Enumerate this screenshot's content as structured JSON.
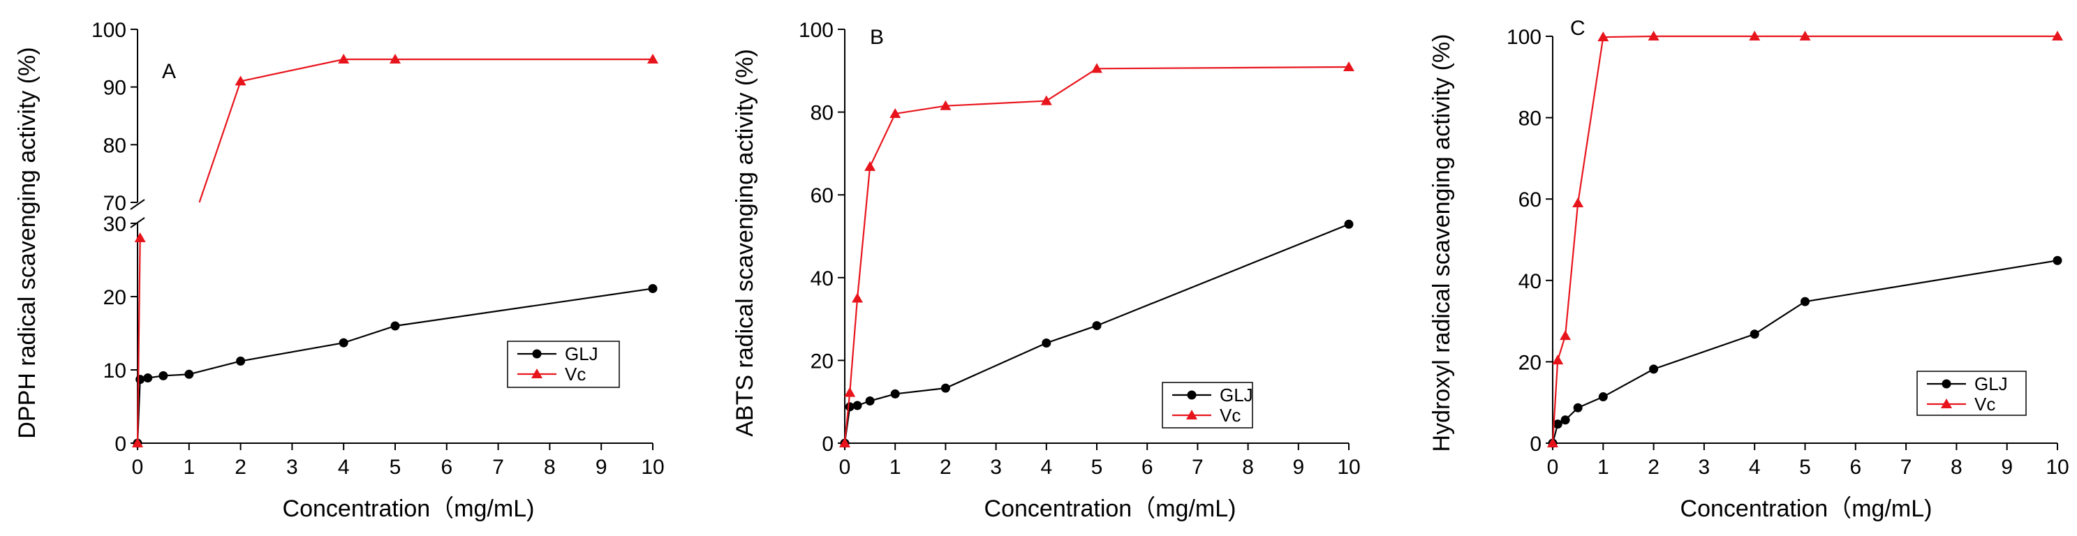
{
  "colors": {
    "glj": "#000000",
    "vc": "#e8141c",
    "axis": "#000000"
  },
  "chart_data": [
    {
      "type": "line",
      "panel_label": "A",
      "xlabel": "Concentration（mg/mL)",
      "ylabel": "DPPH radical scavenging activity (%)",
      "xlim": [
        0,
        10
      ],
      "xticks": [
        0,
        1,
        2,
        3,
        4,
        5,
        6,
        7,
        8,
        9,
        10
      ],
      "y_break": true,
      "ylim_lower": [
        0,
        30
      ],
      "yticks_lower": [
        0,
        10,
        20,
        30
      ],
      "ylim_upper": [
        70,
        100
      ],
      "yticks_upper": [
        70,
        80,
        90,
        100
      ],
      "legend_position": "lower-right",
      "series": [
        {
          "name": "GLJ",
          "marker": "circle",
          "x": [
            0,
            0.05,
            0.2,
            0.5,
            1,
            2,
            4,
            5,
            10
          ],
          "y": [
            0,
            8.7,
            8.9,
            9.2,
            9.4,
            11.2,
            13.7,
            16.0,
            21.1
          ]
        },
        {
          "name": "Vc",
          "marker": "triangle",
          "x": [
            0,
            0.05,
            2,
            4,
            5,
            10
          ],
          "y": [
            0,
            28,
            91.0,
            94.8,
            94.8,
            94.8
          ],
          "label_lower_trace": "",
          "break_segment": [
            [
              0.05,
              28
            ],
            [
              1.2,
              70
            ]
          ]
        }
      ]
    },
    {
      "type": "line",
      "panel_label": "B",
      "xlabel": "Concentration（mg/mL)",
      "ylabel": "ABTS radical scavenging activity (%)",
      "xlim": [
        0,
        10
      ],
      "xticks": [
        0,
        1,
        2,
        3,
        4,
        5,
        6,
        7,
        8,
        9,
        10
      ],
      "ylim": [
        0,
        100
      ],
      "yticks": [
        0,
        20,
        40,
        60,
        80,
        100
      ],
      "legend_position": "lower-right",
      "series": [
        {
          "name": "GLJ",
          "marker": "circle",
          "x": [
            0,
            0.1,
            0.25,
            0.5,
            1,
            2,
            4,
            5,
            10
          ],
          "y": [
            0,
            8.8,
            9.1,
            10.2,
            11.9,
            13.3,
            24.2,
            28.4,
            52.9
          ]
        },
        {
          "name": "Vc",
          "marker": "triangle",
          "x": [
            0,
            0.1,
            0.25,
            0.5,
            1,
            2,
            4,
            5,
            10
          ],
          "y": [
            0,
            12.2,
            35.0,
            66.8,
            79.6,
            81.5,
            82.7,
            90.5,
            90.9
          ]
        }
      ]
    },
    {
      "type": "line",
      "panel_label": "C",
      "xlabel": "Concentration（mg/mL)",
      "ylabel": "Hydroxyl radical scavenging activity (%)",
      "xlim": [
        0,
        10
      ],
      "xticks": [
        0,
        1,
        2,
        3,
        4,
        5,
        6,
        7,
        8,
        9,
        10
      ],
      "ylim": [
        0,
        100
      ],
      "yticks": [
        0,
        20,
        40,
        60,
        80,
        100
      ],
      "legend_position": "lower-right",
      "series": [
        {
          "name": "GLJ",
          "marker": "circle",
          "x": [
            0,
            0.1,
            0.25,
            0.5,
            1,
            2,
            4,
            5,
            10
          ],
          "y": [
            0,
            4.7,
            5.7,
            8.7,
            11.4,
            18.2,
            26.8,
            34.8,
            44.9
          ]
        },
        {
          "name": "Vc",
          "marker": "triangle",
          "x": [
            0,
            0.1,
            0.25,
            0.5,
            1,
            2,
            4,
            5,
            10
          ],
          "y": [
            0,
            20.4,
            26.4,
            59.0,
            99.8,
            100,
            100,
            100,
            100
          ]
        }
      ]
    }
  ]
}
